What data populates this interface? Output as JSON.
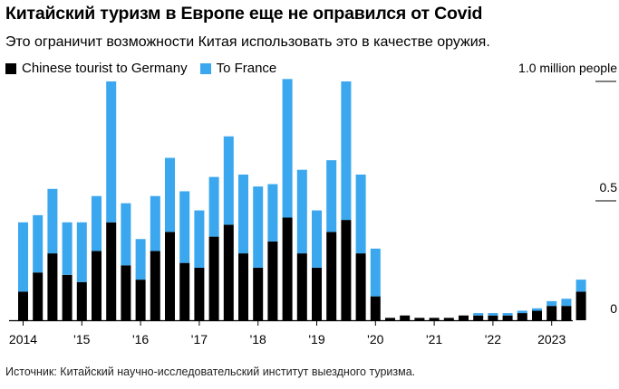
{
  "title": "Китайский туризм в Европе еще не оправился от Covid",
  "subtitle": "Это ограничит возможности Китая использовать это в качестве оружия.",
  "source": "Источник: Китайский научно-исследовательский институт выездного туризма.",
  "colors": {
    "germany": "#000000",
    "france": "#3aa7ee",
    "axis": "#000000"
  },
  "chart_data": {
    "type": "bar",
    "stacked": true,
    "units": "million people",
    "series": [
      {
        "name": "Chinese tourist to Germany",
        "color": "#000000",
        "values": [
          0.12,
          0.2,
          0.28,
          0.19,
          0.16,
          0.29,
          0.41,
          0.23,
          0.17,
          0.29,
          0.37,
          0.24,
          0.22,
          0.35,
          0.4,
          0.28,
          0.22,
          0.33,
          0.43,
          0.28,
          0.22,
          0.37,
          0.42,
          0.28,
          0.1,
          0.01,
          0.02,
          0.01,
          0.01,
          0.01,
          0.02,
          0.02,
          0.02,
          0.02,
          0.03,
          0.04,
          0.06,
          0.06,
          0.12
        ]
      },
      {
        "name": "To France",
        "color": "#3aa7ee",
        "values": [
          0.29,
          0.24,
          0.27,
          0.22,
          0.25,
          0.23,
          0.59,
          0.26,
          0.17,
          0.23,
          0.31,
          0.3,
          0.24,
          0.25,
          0.37,
          0.33,
          0.34,
          0.24,
          0.58,
          0.35,
          0.24,
          0.3,
          0.58,
          0.33,
          0.2,
          0.0,
          0.0,
          0.0,
          0.0,
          0.0,
          0.0,
          0.01,
          0.01,
          0.01,
          0.01,
          0.01,
          0.02,
          0.03,
          0.05
        ]
      }
    ],
    "x_ticks": [
      {
        "label": "2014",
        "index": 0
      },
      {
        "label": "'15",
        "index": 4
      },
      {
        "label": "'16",
        "index": 8
      },
      {
        "label": "'17",
        "index": 12
      },
      {
        "label": "'18",
        "index": 16
      },
      {
        "label": "'19",
        "index": 20
      },
      {
        "label": "'20",
        "index": 24
      },
      {
        "label": "'21",
        "index": 28
      },
      {
        "label": "'22",
        "index": 32
      },
      {
        "label": "2023",
        "index": 36
      }
    ],
    "y_ticks": [
      {
        "value": 0,
        "label": "0"
      },
      {
        "value": 0.5,
        "label": "0.5"
      },
      {
        "value": 1.0,
        "label": "1.0 million people"
      }
    ],
    "ylim": [
      0,
      1.0
    ],
    "legend_position": "top-left",
    "y_axis_position": "right",
    "grid": false
  }
}
